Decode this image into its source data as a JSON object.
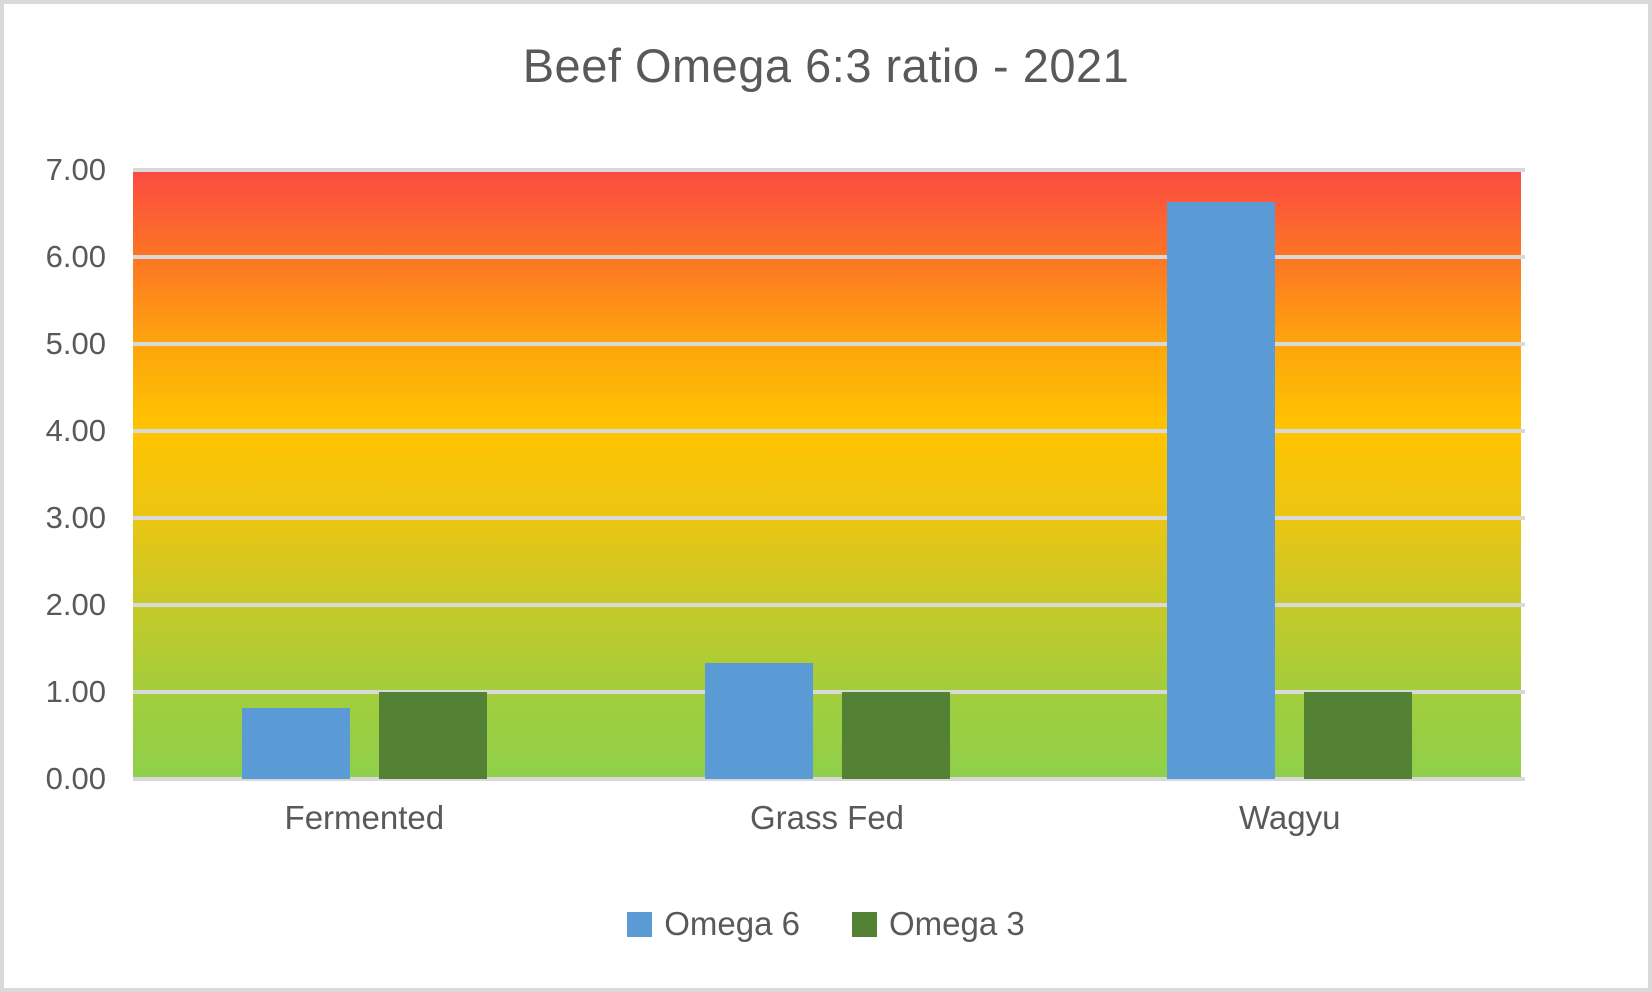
{
  "frame": {
    "background_color": "#ffffff",
    "border_color": "#d9d9d9",
    "text_color": "#595959",
    "gridline_color": "#d9d9d9"
  },
  "chart_data": {
    "type": "bar",
    "title": "Beef Omega 6:3 ratio - 2021",
    "categories": [
      "Fermented",
      "Grass Fed",
      "Wagyu"
    ],
    "series": [
      {
        "name": "Omega 6",
        "color": "#5b9bd5",
        "values": [
          0.82,
          1.33,
          6.63
        ]
      },
      {
        "name": "Omega 3",
        "color": "#548235",
        "values": [
          1.0,
          1.0,
          1.0
        ]
      }
    ],
    "xlabel": "",
    "ylabel": "",
    "ylim": [
      0,
      7
    ],
    "ytick_step": 1,
    "ytick_labels": [
      "0.00",
      "1.00",
      "2.00",
      "3.00",
      "4.00",
      "5.00",
      "6.00",
      "7.00"
    ],
    "grid": true,
    "legend_position": "bottom",
    "plot_background_gradient_bottom_to_top": [
      "#8ed04b",
      "#a3cd3c",
      "#c6c928",
      "#ebc512",
      "#ffc400",
      "#fea50e",
      "#fd7524",
      "#fb4a43"
    ]
  }
}
